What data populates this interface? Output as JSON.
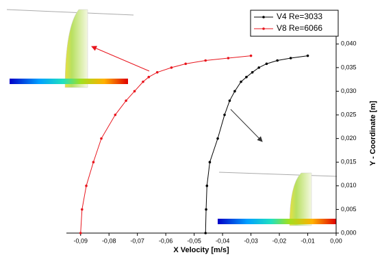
{
  "chart_data": {
    "type": "line",
    "x_label": "X Velocity [m/s]",
    "y_label": "Y - Coordinate [m]",
    "xlim": [
      -0.095,
      0
    ],
    "ylim": [
      0,
      0.0425
    ],
    "xticks": [
      {
        "value": -0.09,
        "label": "-0,09"
      },
      {
        "value": -0.08,
        "label": "-0,08"
      },
      {
        "value": -0.07,
        "label": "-0,07"
      },
      {
        "value": -0.06,
        "label": "-0,06"
      },
      {
        "value": -0.05,
        "label": "-0,05"
      },
      {
        "value": -0.04,
        "label": "-0,04"
      },
      {
        "value": -0.03,
        "label": "-0,03"
      },
      {
        "value": -0.02,
        "label": "-0,02"
      },
      {
        "value": -0.01,
        "label": "-0,01"
      },
      {
        "value": 0,
        "label": "0,00"
      }
    ],
    "yticks": [
      {
        "value": 0,
        "label": "0,000"
      },
      {
        "value": 0.005,
        "label": "0,005"
      },
      {
        "value": 0.01,
        "label": "0,010"
      },
      {
        "value": 0.015,
        "label": "0,015"
      },
      {
        "value": 0.02,
        "label": "0,020"
      },
      {
        "value": 0.025,
        "label": "0,025"
      },
      {
        "value": 0.03,
        "label": "0,030"
      },
      {
        "value": 0.035,
        "label": "0,035"
      },
      {
        "value": 0.04,
        "label": "0,040"
      }
    ],
    "legend": "upper right",
    "series": [
      {
        "name": "V4 Re=3033",
        "color": "#000000",
        "x": [
          -0.046,
          -0.0458,
          -0.0455,
          -0.0445,
          -0.0417,
          -0.0393,
          -0.0375,
          -0.0357,
          -0.0335,
          -0.0316,
          -0.0295,
          -0.0272,
          -0.0245,
          -0.0207,
          -0.016,
          -0.01
        ],
        "values": [
          0,
          0.005,
          0.01,
          0.015,
          0.02,
          0.025,
          0.028,
          0.03,
          0.032,
          0.033,
          0.034,
          0.035,
          0.0358,
          0.0365,
          0.037,
          0.0375
        ]
      },
      {
        "name": "V8 Re=6066",
        "color": "#e8141c",
        "x": [
          -0.09,
          -0.0895,
          -0.088,
          -0.0855,
          -0.0827,
          -0.0778,
          -0.074,
          -0.071,
          -0.068,
          -0.066,
          -0.063,
          -0.058,
          -0.053,
          -0.046,
          -0.038,
          -0.03
        ],
        "values": [
          0,
          0.005,
          0.01,
          0.015,
          0.02,
          0.025,
          0.028,
          0.03,
          0.032,
          0.033,
          0.034,
          0.035,
          0.0358,
          0.0365,
          0.037,
          0.0375
        ]
      }
    ]
  }
}
